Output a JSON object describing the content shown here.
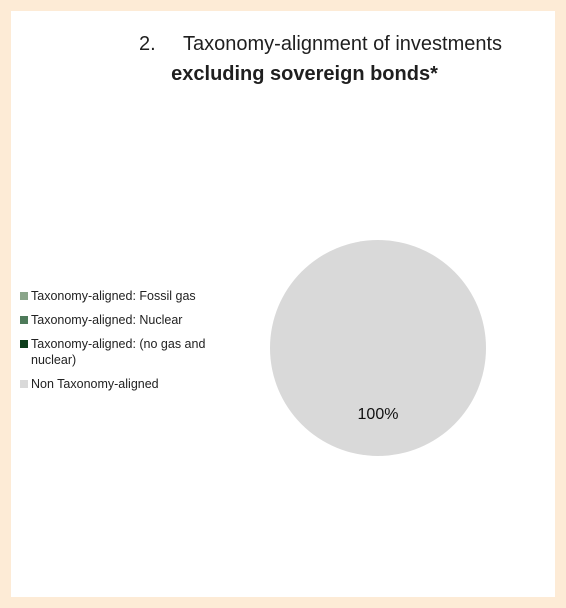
{
  "chart_data": {
    "type": "pie",
    "title_number": "2.",
    "title_line1": "Taxonomy-alignment of investments",
    "title_line2": "excluding sovereign bonds*",
    "categories": [
      "Taxonomy-aligned: Fossil gas",
      "Taxonomy-aligned: Nuclear",
      "Taxonomy-aligned: (no gas and nuclear)",
      "Non Taxonomy-aligned"
    ],
    "values": [
      0,
      0,
      0,
      100
    ],
    "colors": [
      "#8aa58a",
      "#4e7a5a",
      "#0d3d1a",
      "#d9d9d9"
    ],
    "data_labels": [
      "",
      "",
      "",
      "100%"
    ],
    "legend_position": "left"
  }
}
